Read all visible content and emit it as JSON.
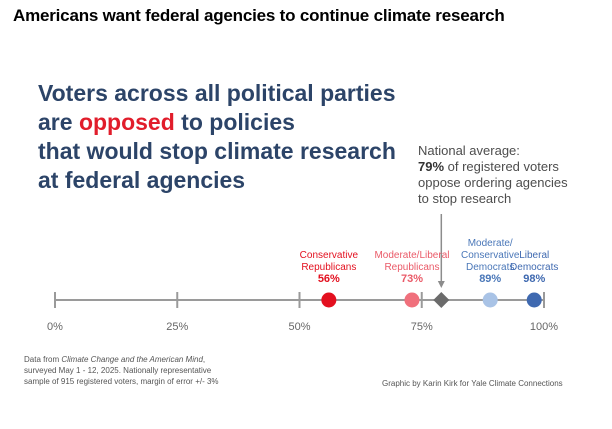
{
  "title": "Americans want federal agencies to continue climate research",
  "headline": {
    "line1": "Voters across all political parties",
    "line2_pre": "are ",
    "line2_highlight": "opposed",
    "line2_post": " to policies",
    "line3": "that would stop climate research",
    "line4": "at federal agencies"
  },
  "callout": {
    "line1": "National average:",
    "line2_pct": "79%",
    "line2_rest": " of registered voters",
    "line3": "oppose ordering agencies",
    "line4": "to stop research"
  },
  "chart_data": {
    "type": "scatter",
    "title": "Voters across all political parties are opposed to policies that would stop climate research at federal agencies",
    "xlim": [
      0,
      100
    ],
    "ticks": [
      0,
      25,
      50,
      75,
      100
    ],
    "tick_labels": [
      "0%",
      "25%",
      "50%",
      "75%",
      "100%"
    ],
    "points": [
      {
        "name": "Conservative Republicans",
        "label_lines": [
          "Conservative",
          "Republicans"
        ],
        "value": 56,
        "value_label": "56%",
        "color": "#e3101f",
        "label_color": "#e3101f",
        "marker": "circle"
      },
      {
        "name": "Moderate/Liberal Republicans",
        "label_lines": [
          "Moderate/Liberal",
          "Republicans"
        ],
        "value": 73,
        "value_label": "73%",
        "color": "#f0707c",
        "label_color": "#ea5a68",
        "marker": "circle"
      },
      {
        "name": "National average",
        "label_lines": [],
        "value": 79,
        "value_label": "",
        "color": "#6b6b6b",
        "label_color": "#6b6b6b",
        "marker": "diamond"
      },
      {
        "name": "Moderate/Conservative Democrats",
        "label_lines": [
          "Moderate/",
          "Conservative",
          "Democrats"
        ],
        "value": 89,
        "value_label": "89%",
        "color": "#a9c3e6",
        "label_color": "#4a77b8",
        "marker": "circle"
      },
      {
        "name": "Liberal Democrats",
        "label_lines": [
          "Liberal",
          "Democrats"
        ],
        "value": 98,
        "value_label": "98%",
        "color": "#3f69b0",
        "label_color": "#3f69b0",
        "marker": "circle"
      }
    ]
  },
  "footer": {
    "source_pre": "Data from ",
    "source_title": "Climate Change and the American Mind",
    "source_post": ",",
    "line2": "surveyed May 1 - 12, 2025. Nationally representative",
    "line3": "sample of 915 registered voters, margin of error +/- 3%",
    "credit": "Graphic by Karin Kirk for Yale Climate Connections"
  }
}
